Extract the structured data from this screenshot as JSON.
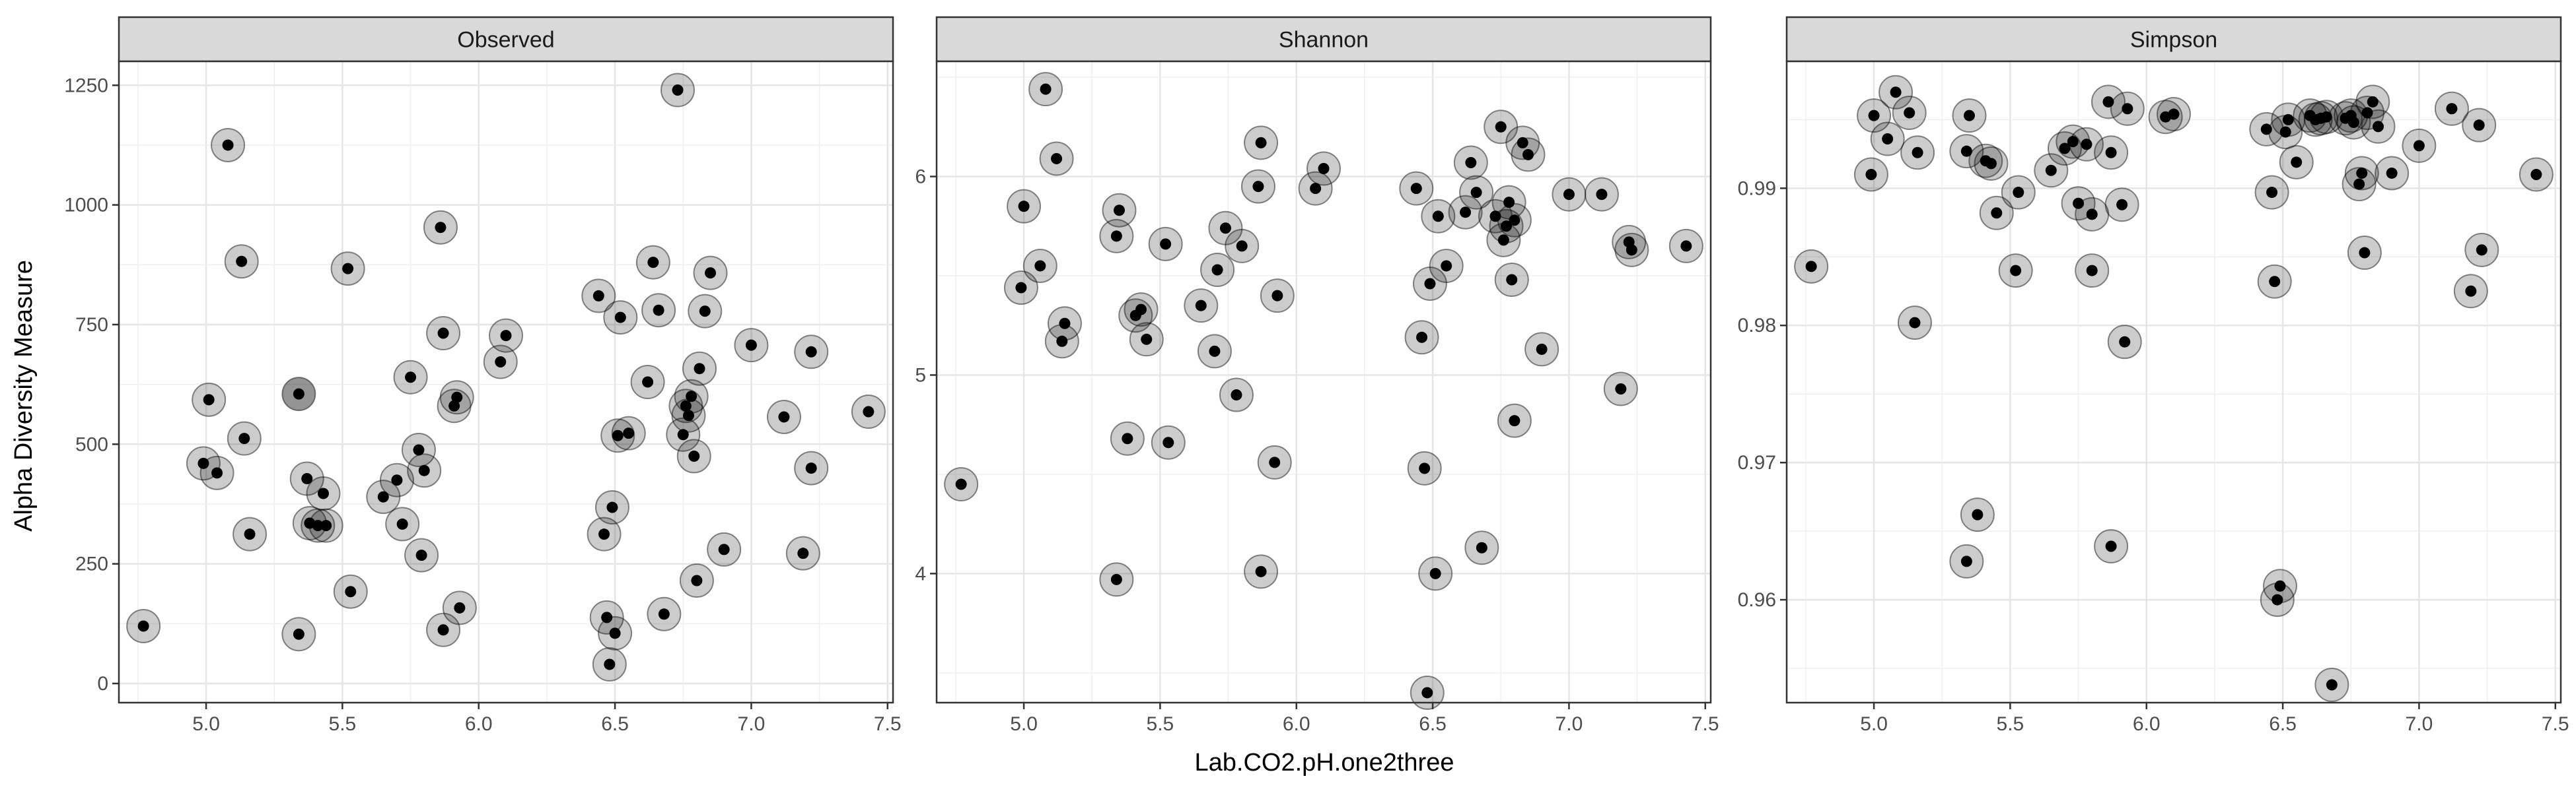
{
  "figure": {
    "ylabel": "Alpha Diversity Measure",
    "xlabel": "Lab.CO2.pH.one2three"
  },
  "chart_data": [
    {
      "type": "scatter",
      "title": "Observed",
      "xlim": [
        4.68,
        7.52
      ],
      "ylim": [
        -40,
        1300
      ],
      "xticks": [
        5.0,
        5.5,
        6.0,
        6.5,
        7.0,
        7.5
      ],
      "xtick_labels": [
        "5.0",
        "5.5",
        "6.0",
        "6.5",
        "7.0",
        "7.5"
      ],
      "yticks": [
        0,
        250,
        500,
        750,
        1000,
        1250
      ],
      "ytick_labels": [
        "0",
        "250",
        "500",
        "750",
        "1000",
        "1250"
      ],
      "grid": true,
      "x": [
        4.77,
        4.99,
        5.01,
        5.04,
        5.08,
        5.13,
        5.14,
        5.16,
        5.34,
        5.34,
        5.37,
        5.38,
        5.41,
        5.43,
        5.44,
        5.52,
        5.53,
        5.65,
        5.7,
        5.72,
        5.75,
        5.78,
        5.79,
        5.8,
        5.86,
        5.87,
        5.87,
        5.91,
        5.92,
        5.93,
        6.08,
        6.1,
        6.44,
        6.46,
        6.47,
        6.48,
        6.49,
        6.5,
        6.51,
        6.52,
        6.55,
        6.62,
        6.64,
        6.66,
        6.68,
        6.73,
        6.75,
        6.76,
        6.77,
        6.78,
        6.79,
        6.8,
        6.81,
        6.83,
        6.85,
        6.9,
        7.0,
        7.12,
        7.19,
        7.22,
        7.22,
        7.43
      ],
      "y": [
        120,
        460,
        593,
        440,
        1125,
        882,
        512,
        312,
        605,
        103,
        428,
        335,
        330,
        397,
        330,
        867,
        192,
        390,
        425,
        333,
        640,
        488,
        268,
        445,
        953,
        732,
        112,
        580,
        598,
        158,
        672,
        727,
        810,
        312,
        138,
        40,
        368,
        105,
        518,
        765,
        523,
        630,
        880,
        780,
        145,
        1240,
        520,
        580,
        560,
        600,
        475,
        215,
        658,
        778,
        858,
        280,
        707,
        557,
        272,
        450,
        693,
        568
      ],
      "highlight": [
        8
      ]
    },
    {
      "type": "scatter",
      "title": "Shannon",
      "xlim": [
        4.68,
        7.52
      ],
      "ylim": [
        3.35,
        6.58
      ],
      "xticks": [
        5.0,
        5.5,
        6.0,
        6.5,
        7.0,
        7.5
      ],
      "xtick_labels": [
        "5.0",
        "5.5",
        "6.0",
        "6.5",
        "7.0",
        "7.5"
      ],
      "yticks": [
        4,
        5,
        6
      ],
      "ytick_labels": [
        "4",
        "5",
        "6"
      ],
      "grid": true,
      "x": [
        4.77,
        4.99,
        5.0,
        5.06,
        5.08,
        5.12,
        5.14,
        5.15,
        5.34,
        5.34,
        5.35,
        5.38,
        5.41,
        5.43,
        5.45,
        5.52,
        5.53,
        5.65,
        5.7,
        5.71,
        5.74,
        5.78,
        5.8,
        5.86,
        5.87,
        5.87,
        5.92,
        5.93,
        6.07,
        6.1,
        6.44,
        6.46,
        6.47,
        6.48,
        6.49,
        6.51,
        6.52,
        6.55,
        6.62,
        6.64,
        6.66,
        6.68,
        6.73,
        6.75,
        6.76,
        6.77,
        6.78,
        6.79,
        6.8,
        6.8,
        6.83,
        6.85,
        6.9,
        7.0,
        7.12,
        7.19,
        7.22,
        7.23,
        7.43
      ],
      "y": [
        4.45,
        5.44,
        5.85,
        5.55,
        6.44,
        6.09,
        5.17,
        5.26,
        3.97,
        5.7,
        5.83,
        4.68,
        5.3,
        5.33,
        5.18,
        5.66,
        4.66,
        5.35,
        5.12,
        5.53,
        5.74,
        4.9,
        5.65,
        5.95,
        6.17,
        4.01,
        4.56,
        5.4,
        5.94,
        6.04,
        5.94,
        5.19,
        4.53,
        3.4,
        5.46,
        4.0,
        5.8,
        5.55,
        5.82,
        6.07,
        5.92,
        4.13,
        5.8,
        6.25,
        5.68,
        5.75,
        5.87,
        5.48,
        4.77,
        5.78,
        6.17,
        6.11,
        5.13,
        5.91,
        5.91,
        4.93,
        5.67,
        5.63,
        5.65
      ],
      "highlight": []
    },
    {
      "type": "scatter",
      "title": "Simpson",
      "xlim": [
        4.68,
        7.52
      ],
      "ylim": [
        0.9525,
        0.99925
      ],
      "xticks": [
        5.0,
        5.5,
        6.0,
        6.5,
        7.0,
        7.5
      ],
      "xtick_labels": [
        "5.0",
        "5.5",
        "6.0",
        "6.5",
        "7.0",
        "7.5"
      ],
      "yticks": [
        0.96,
        0.97,
        0.98,
        0.99
      ],
      "ytick_labels": [
        "0.96",
        "0.97",
        "0.98",
        "0.99"
      ],
      "grid": true,
      "x": [
        4.77,
        4.99,
        5.0,
        5.05,
        5.08,
        5.13,
        5.15,
        5.16,
        5.34,
        5.34,
        5.35,
        5.38,
        5.41,
        5.43,
        5.45,
        5.52,
        5.53,
        5.65,
        5.7,
        5.73,
        5.75,
        5.78,
        5.8,
        5.8,
        5.86,
        5.87,
        5.87,
        5.91,
        5.92,
        5.93,
        6.07,
        6.1,
        6.44,
        6.46,
        6.47,
        6.48,
        6.49,
        6.51,
        6.52,
        6.55,
        6.6,
        6.62,
        6.64,
        6.66,
        6.68,
        6.73,
        6.75,
        6.76,
        6.78,
        6.79,
        6.8,
        6.81,
        6.83,
        6.85,
        6.9,
        7.0,
        7.12,
        7.19,
        7.22,
        7.23,
        7.43
      ],
      "y": [
        0.9843,
        0.991,
        0.9953,
        0.9936,
        0.997,
        0.9955,
        0.9802,
        0.9926,
        0.9628,
        0.9927,
        0.9953,
        0.9662,
        0.992,
        0.9918,
        0.9882,
        0.984,
        0.9897,
        0.9913,
        0.9929,
        0.9934,
        0.9889,
        0.9932,
        0.984,
        0.9881,
        0.9963,
        0.9926,
        0.9639,
        0.9888,
        0.9788,
        0.9958,
        0.9952,
        0.9954,
        0.9943,
        0.9897,
        0.9832,
        0.96,
        0.961,
        0.9941,
        0.995,
        0.9919,
        0.9953,
        0.995,
        0.9951,
        0.9952,
        0.9538,
        0.9951,
        0.9953,
        0.9948,
        0.9903,
        0.9911,
        0.9853,
        0.9955,
        0.9963,
        0.9945,
        0.9911,
        0.9931,
        0.9958,
        0.9825,
        0.9946,
        0.9855,
        0.991
      ],
      "highlight": []
    }
  ]
}
